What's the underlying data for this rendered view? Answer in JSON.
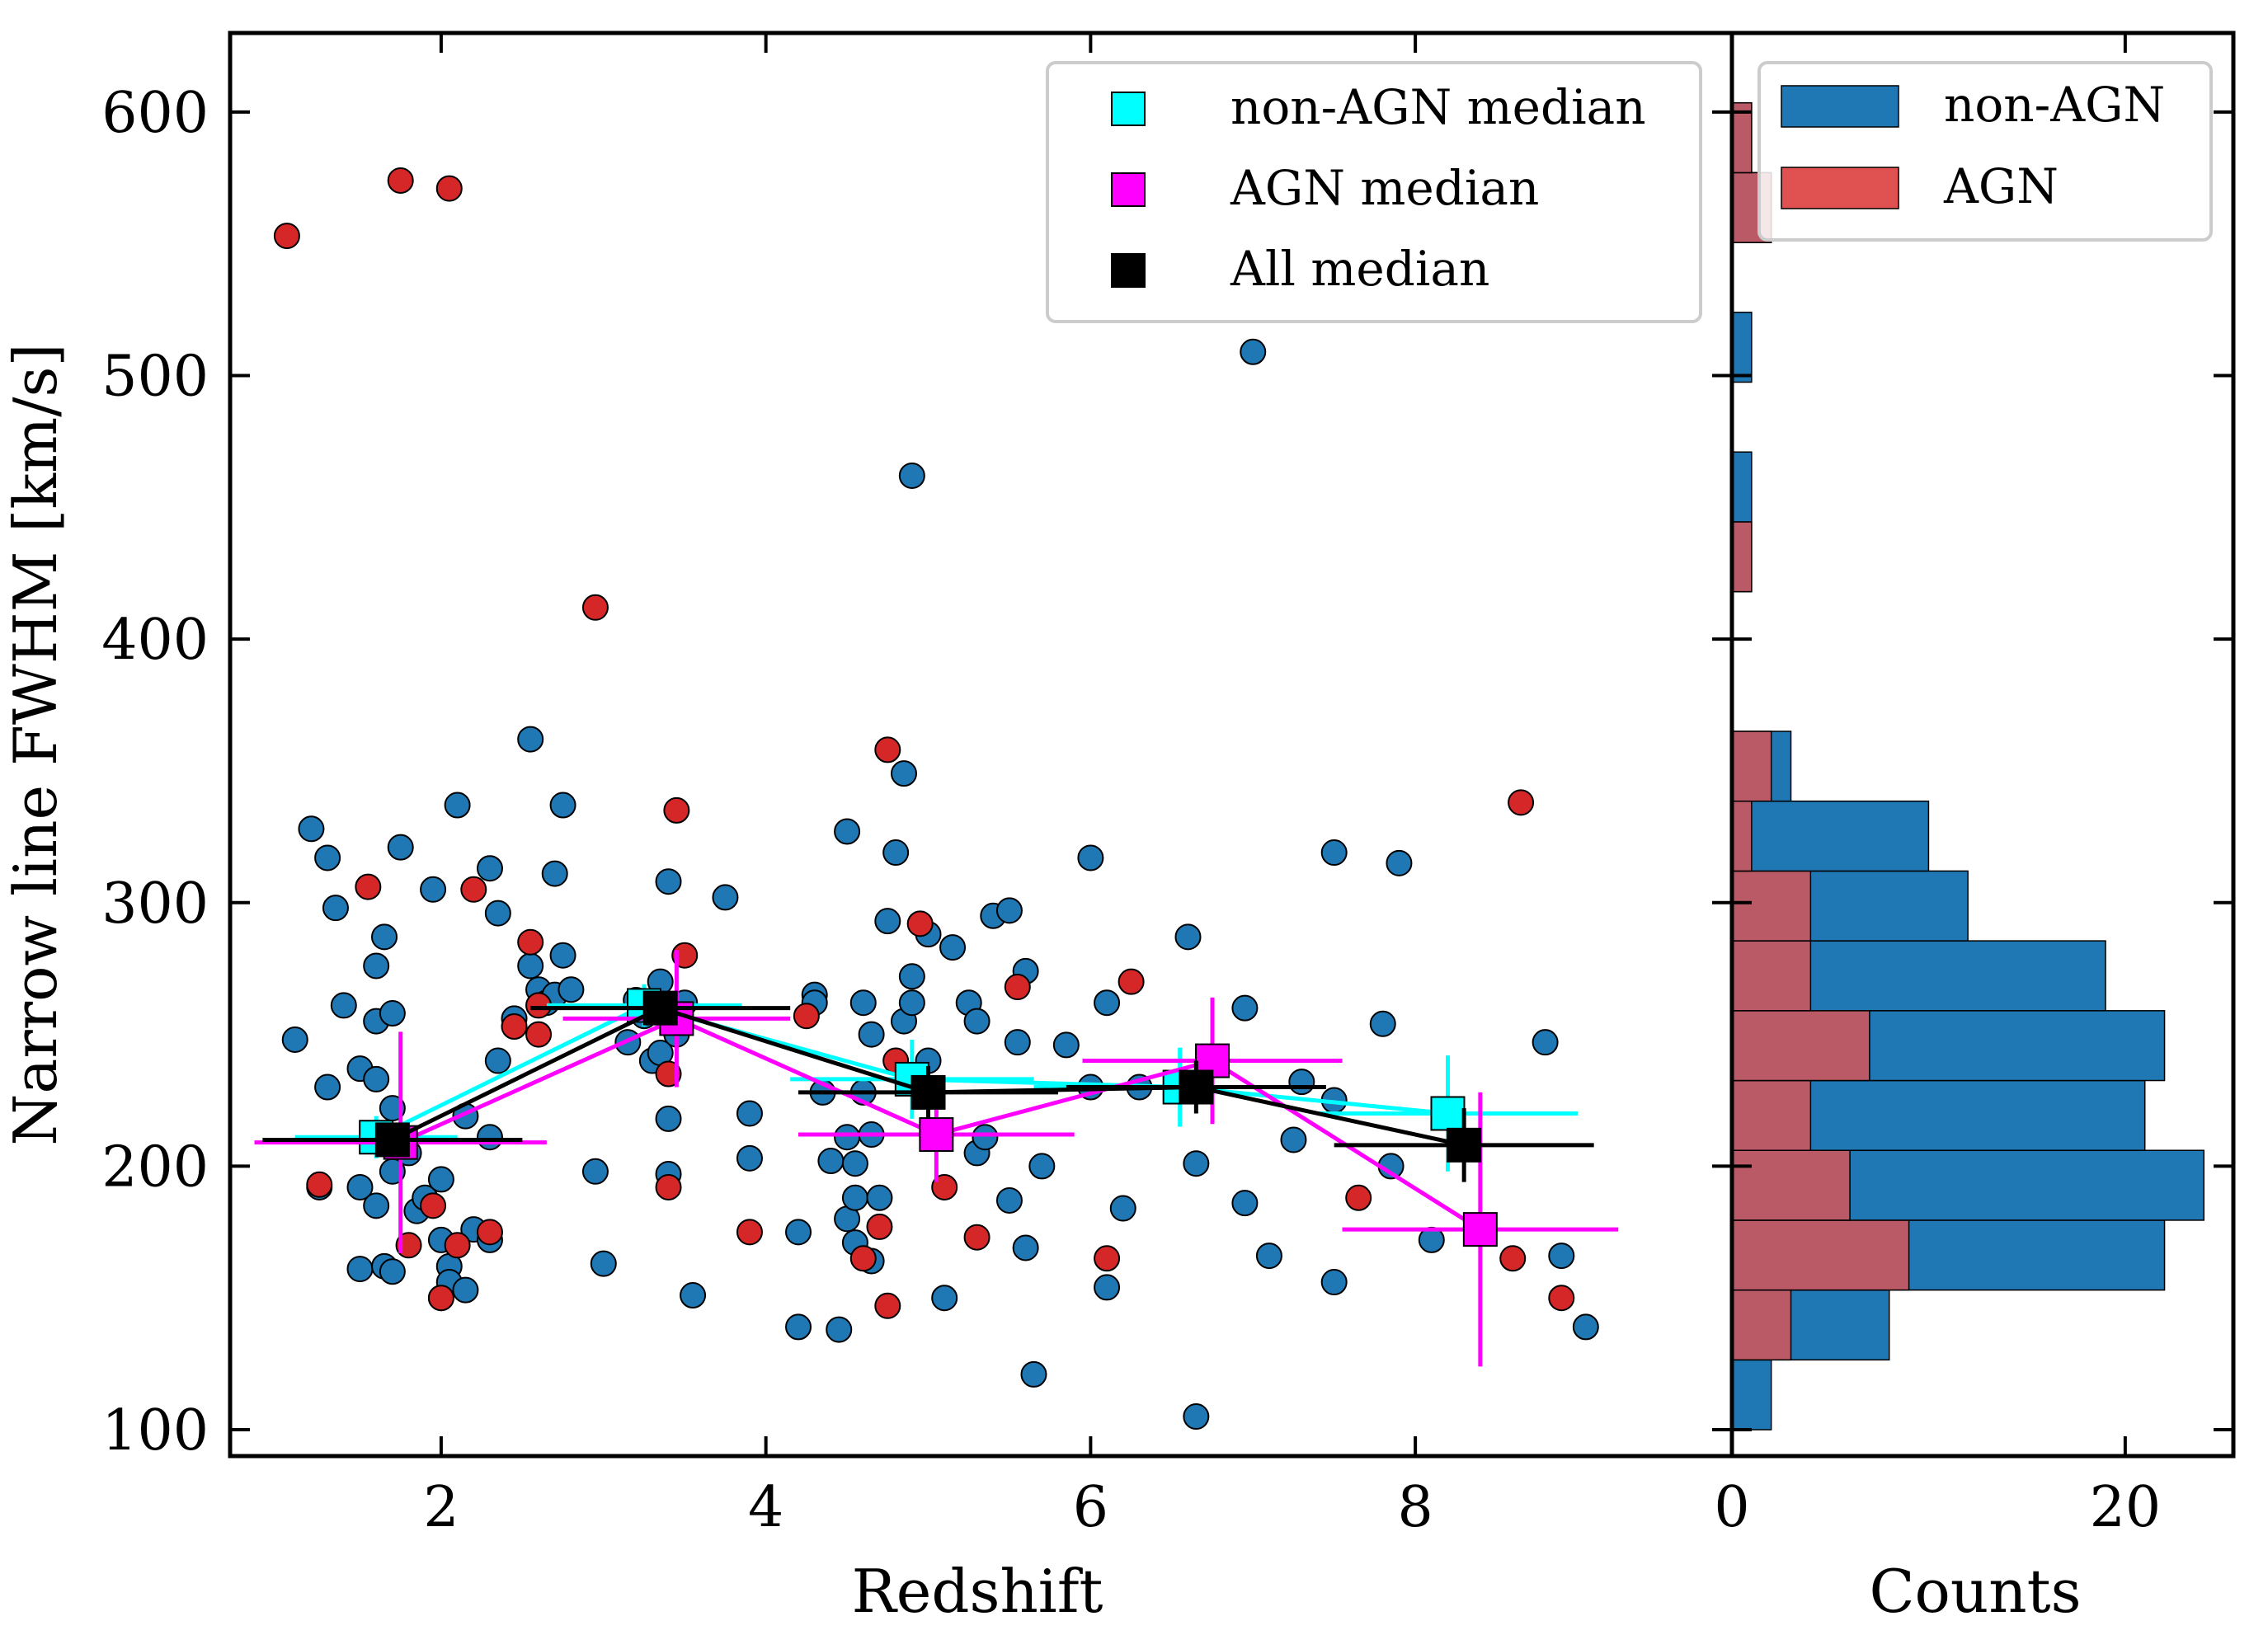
{
  "colors": {
    "non_agn": "#1f77b4",
    "agn": "#d62728",
    "agn_hist": "#e05252",
    "non_agn_median": "#00ffff",
    "agn_median": "#ff00ff",
    "all_median": "#000000"
  },
  "chart_data": [
    {
      "type": "scatter",
      "xlabel": "Redshift",
      "ylabel": "Narrow line FWHM [km/s]",
      "xlim": [
        0.7,
        9.95
      ],
      "ylim": [
        90,
        630
      ],
      "xticks": [
        2,
        4,
        6,
        8
      ],
      "yticks": [
        100,
        200,
        300,
        400,
        500,
        600
      ],
      "legend": {
        "position": "top-right",
        "entries": [
          {
            "label": "non-AGN median",
            "color": "#00ffff"
          },
          {
            "label": "AGN median",
            "color": "#ff00ff"
          },
          {
            "label": "All median",
            "color": "#000000"
          }
        ]
      },
      "non_agn_points": [
        [
          1.1,
          248
        ],
        [
          1.2,
          328
        ],
        [
          1.3,
          317
        ],
        [
          1.35,
          298
        ],
        [
          1.4,
          261
        ],
        [
          1.3,
          230
        ],
        [
          1.25,
          192
        ],
        [
          1.5,
          237
        ],
        [
          1.5,
          192
        ],
        [
          1.5,
          161
        ],
        [
          1.6,
          276
        ],
        [
          1.6,
          255
        ],
        [
          1.6,
          233
        ],
        [
          1.6,
          185
        ],
        [
          1.65,
          287
        ],
        [
          1.65,
          162
        ],
        [
          1.7,
          258
        ],
        [
          1.7,
          222
        ],
        [
          1.7,
          198
        ],
        [
          1.7,
          160
        ],
        [
          1.75,
          321
        ],
        [
          1.8,
          205
        ],
        [
          1.85,
          183
        ],
        [
          1.95,
          305
        ],
        [
          1.9,
          188
        ],
        [
          2.0,
          195
        ],
        [
          2.0,
          172
        ],
        [
          2.0,
          150
        ],
        [
          2.05,
          162
        ],
        [
          2.05,
          156
        ],
        [
          2.1,
          337
        ],
        [
          2.15,
          219
        ],
        [
          2.15,
          153
        ],
        [
          2.2,
          176
        ],
        [
          2.3,
          313
        ],
        [
          2.3,
          211
        ],
        [
          2.3,
          172
        ],
        [
          2.35,
          296
        ],
        [
          2.35,
          240
        ],
        [
          2.45,
          256
        ],
        [
          2.55,
          362
        ],
        [
          2.55,
          276
        ],
        [
          2.6,
          267
        ],
        [
          2.65,
          262
        ],
        [
          2.7,
          265
        ],
        [
          2.7,
          311
        ],
        [
          2.75,
          337
        ],
        [
          2.75,
          280
        ],
        [
          2.8,
          267
        ],
        [
          2.95,
          198
        ],
        [
          3.0,
          163
        ],
        [
          3.15,
          247
        ],
        [
          3.2,
          263
        ],
        [
          3.25,
          257
        ],
        [
          3.3,
          240
        ],
        [
          3.35,
          270
        ],
        [
          3.35,
          243
        ],
        [
          3.4,
          308
        ],
        [
          3.4,
          197
        ],
        [
          3.4,
          218
        ],
        [
          3.45,
          250
        ],
        [
          3.5,
          262
        ],
        [
          3.55,
          151
        ],
        [
          3.75,
          302
        ],
        [
          3.9,
          220
        ],
        [
          3.9,
          203
        ],
        [
          4.2,
          175
        ],
        [
          4.2,
          139
        ],
        [
          4.3,
          265
        ],
        [
          4.3,
          262
        ],
        [
          4.35,
          228
        ],
        [
          4.4,
          202
        ],
        [
          4.45,
          138
        ],
        [
          4.5,
          327
        ],
        [
          4.5,
          211
        ],
        [
          4.5,
          180
        ],
        [
          4.55,
          201
        ],
        [
          4.55,
          188
        ],
        [
          4.55,
          171
        ],
        [
          4.6,
          262
        ],
        [
          4.6,
          228
        ],
        [
          4.65,
          250
        ],
        [
          4.65,
          212
        ],
        [
          4.65,
          164
        ],
        [
          4.7,
          188
        ],
        [
          4.75,
          293
        ],
        [
          4.8,
          319
        ],
        [
          4.85,
          349
        ],
        [
          4.85,
          255
        ],
        [
          4.9,
          462
        ],
        [
          4.9,
          272
        ],
        [
          4.9,
          262
        ],
        [
          5.0,
          288
        ],
        [
          5.0,
          240
        ],
        [
          5.1,
          150
        ],
        [
          5.15,
          283
        ],
        [
          5.25,
          262
        ],
        [
          5.3,
          255
        ],
        [
          5.3,
          205
        ],
        [
          5.35,
          211
        ],
        [
          5.4,
          295
        ],
        [
          5.5,
          297
        ],
        [
          5.5,
          187
        ],
        [
          5.55,
          247
        ],
        [
          5.6,
          274
        ],
        [
          5.6,
          169
        ],
        [
          5.65,
          121
        ],
        [
          5.7,
          200
        ],
        [
          5.85,
          246
        ],
        [
          6.0,
          317
        ],
        [
          6.0,
          230
        ],
        [
          6.1,
          262
        ],
        [
          6.1,
          154
        ],
        [
          6.2,
          184
        ],
        [
          6.3,
          230
        ],
        [
          6.6,
          287
        ],
        [
          6.65,
          201
        ],
        [
          6.65,
          105
        ],
        [
          6.95,
          260
        ],
        [
          6.95,
          186
        ],
        [
          7.0,
          509
        ],
        [
          7.1,
          166
        ],
        [
          7.25,
          210
        ],
        [
          7.3,
          232
        ],
        [
          7.5,
          319
        ],
        [
          7.5,
          225
        ],
        [
          7.5,
          156
        ],
        [
          7.8,
          254
        ],
        [
          7.85,
          200
        ],
        [
          7.9,
          315
        ],
        [
          8.1,
          172
        ],
        [
          8.8,
          247
        ],
        [
          8.9,
          166
        ],
        [
          9.05,
          139
        ]
      ],
      "agn_points": [
        [
          1.05,
          553
        ],
        [
          1.25,
          193
        ],
        [
          1.55,
          306
        ],
        [
          1.75,
          574
        ],
        [
          1.8,
          170
        ],
        [
          1.95,
          185
        ],
        [
          2.0,
          150
        ],
        [
          2.05,
          571
        ],
        [
          2.1,
          170
        ],
        [
          2.2,
          305
        ],
        [
          2.3,
          175
        ],
        [
          2.45,
          253
        ],
        [
          2.55,
          285
        ],
        [
          2.6,
          261
        ],
        [
          2.6,
          250
        ],
        [
          2.95,
          412
        ],
        [
          3.4,
          192
        ],
        [
          3.4,
          235
        ],
        [
          3.45,
          335
        ],
        [
          3.5,
          280
        ],
        [
          3.9,
          175
        ],
        [
          4.25,
          257
        ],
        [
          4.6,
          165
        ],
        [
          4.7,
          177
        ],
        [
          4.75,
          147
        ],
        [
          4.75,
          358
        ],
        [
          4.8,
          240
        ],
        [
          4.95,
          292
        ],
        [
          5.1,
          192
        ],
        [
          5.3,
          173
        ],
        [
          5.55,
          268
        ],
        [
          6.1,
          165
        ],
        [
          6.25,
          270
        ],
        [
          7.65,
          188
        ],
        [
          8.6,
          165
        ],
        [
          8.65,
          338
        ],
        [
          8.9,
          150
        ]
      ],
      "non_agn_median": [
        {
          "x": 1.6,
          "y": 211,
          "xerr": 0.5,
          "yerr": 8
        },
        {
          "x": 3.25,
          "y": 261,
          "xerr": 0.6,
          "yerr": 8
        },
        {
          "x": 4.9,
          "y": 233,
          "xerr": 0.75,
          "yerr": 15
        },
        {
          "x": 6.55,
          "y": 230,
          "xerr": 0.9,
          "yerr": 15
        },
        {
          "x": 8.2,
          "y": 220,
          "xerr": 0.8,
          "yerr": 22
        }
      ],
      "agn_median": [
        {
          "x": 1.75,
          "y": 209,
          "xerr": 0.9,
          "yerr": 42
        },
        {
          "x": 3.45,
          "y": 256,
          "xerr": 0.7,
          "yerr": 26
        },
        {
          "x": 5.05,
          "y": 212,
          "xerr": 0.85,
          "yerr": 18
        },
        {
          "x": 6.75,
          "y": 240,
          "xerr": 0.8,
          "yerr": 24
        },
        {
          "x": 8.4,
          "y": 176,
          "xerr": 0.85,
          "yerr": 52
        }
      ],
      "all_median": [
        {
          "x": 1.7,
          "y": 210,
          "xerr": 0.8,
          "yerr": 6
        },
        {
          "x": 3.35,
          "y": 260,
          "xerr": 0.8,
          "yerr": 6
        },
        {
          "x": 5.0,
          "y": 228,
          "xerr": 0.8,
          "yerr": 10
        },
        {
          "x": 6.65,
          "y": 230,
          "xerr": 0.8,
          "yerr": 10
        },
        {
          "x": 8.3,
          "y": 208,
          "xerr": 0.8,
          "yerr": 14
        }
      ]
    },
    {
      "type": "bar",
      "orientation": "horizontal",
      "stacked": true,
      "xlabel": "Counts",
      "xlim": [
        0,
        25.5
      ],
      "xticks": [
        0,
        20
      ],
      "ylim": [
        90,
        630
      ],
      "bin_edges": [
        100,
        126.5,
        153,
        179.5,
        206,
        232.5,
        259,
        285.5,
        312,
        338.5,
        365,
        391.5,
        418,
        444.5,
        471,
        497.5,
        524,
        550.5,
        577,
        603.5
      ],
      "series": [
        {
          "name": "non-AGN",
          "color": "#1f77b4",
          "values": [
            2,
            5,
            13,
            18,
            17,
            15,
            15,
            8,
            9,
            1,
            0,
            0,
            0,
            1,
            0,
            1,
            0,
            0,
            0
          ]
        },
        {
          "name": "AGN",
          "color": "#e05252",
          "values": [
            0,
            3,
            9,
            6,
            4,
            7,
            4,
            4,
            1,
            2,
            0,
            0,
            1,
            0,
            0,
            0,
            0,
            2,
            1
          ]
        }
      ],
      "legend": {
        "position": "top-right",
        "entries": [
          {
            "label": "non-AGN",
            "color": "#1f77b4"
          },
          {
            "label": "AGN",
            "color": "#e05252"
          }
        ]
      }
    }
  ]
}
